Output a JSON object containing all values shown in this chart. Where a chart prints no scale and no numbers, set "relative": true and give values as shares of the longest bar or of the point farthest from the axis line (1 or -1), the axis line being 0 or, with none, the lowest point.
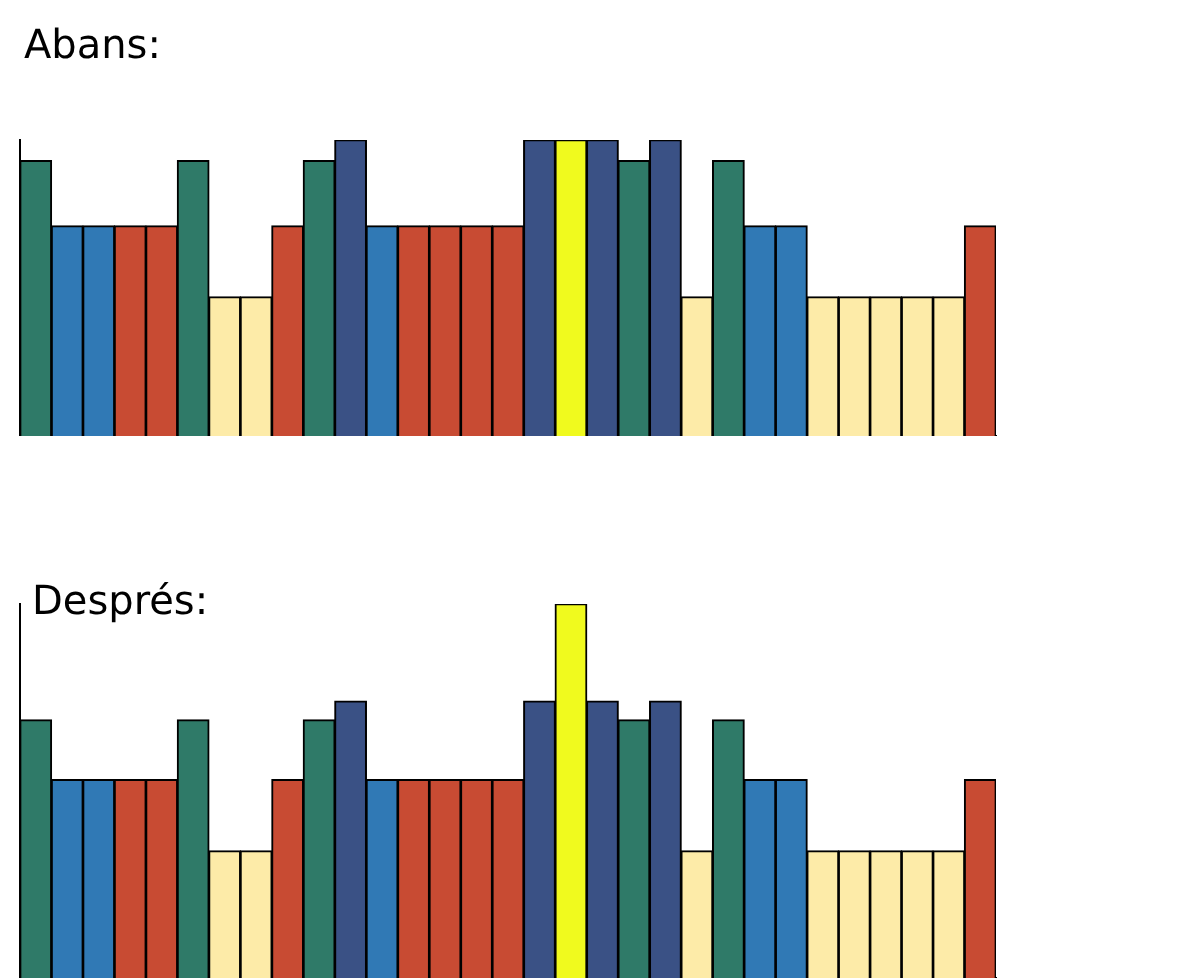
{
  "chart_data": [
    {
      "type": "bar",
      "title": "Abans:",
      "relative": true,
      "tick_labels": false,
      "grid": false,
      "legend": false,
      "categories": [
        null,
        null,
        null,
        null,
        null,
        null,
        null,
        null,
        null,
        null,
        null,
        null,
        null,
        null,
        null,
        null,
        null,
        null,
        null,
        null,
        null,
        null,
        null,
        null,
        null,
        null,
        null,
        null,
        null,
        null,
        null
      ],
      "values": [
        0.93,
        0.71,
        0.71,
        0.71,
        0.71,
        0.93,
        0.47,
        0.47,
        0.71,
        0.93,
        1,
        0.71,
        0.71,
        0.71,
        0.71,
        0.71,
        1,
        1,
        1,
        0.93,
        1,
        0.47,
        0.93,
        0.71,
        0.71,
        0.47,
        0.47,
        0.47,
        0.47,
        0.47,
        0.71
      ],
      "colors": [
        "#2f7a68",
        "#3079b5",
        "#3079b5",
        "#c84b33",
        "#c84b33",
        "#2f7a68",
        "#fdeba8",
        "#fdeba8",
        "#c84b33",
        "#2f7a68",
        "#3a5185",
        "#3079b5",
        "#c84b33",
        "#c84b33",
        "#c84b33",
        "#c84b33",
        "#3a5185",
        "#f0fa1e",
        "#3a5185",
        "#2f7a68",
        "#3a5185",
        "#fdeba8",
        "#2f7a68",
        "#3079b5",
        "#3079b5",
        "#fdeba8",
        "#fdeba8",
        "#fdeba8",
        "#fdeba8",
        "#fdeba8",
        "#c84b33"
      ]
    },
    {
      "type": "bar",
      "title": "Després:",
      "relative": true,
      "tick_labels": false,
      "grid": false,
      "legend": false,
      "categories": [
        null,
        null,
        null,
        null,
        null,
        null,
        null,
        null,
        null,
        null,
        null,
        null,
        null,
        null,
        null,
        null,
        null,
        null,
        null,
        null,
        null,
        null,
        null,
        null,
        null,
        null,
        null,
        null,
        null,
        null,
        null
      ],
      "values": [
        0.69,
        0.53,
        0.53,
        0.53,
        0.53,
        0.69,
        0.34,
        0.34,
        0.53,
        0.69,
        0.74,
        0.53,
        0.53,
        0.53,
        0.53,
        0.53,
        0.74,
        1,
        0.74,
        0.69,
        0.74,
        0.34,
        0.69,
        0.53,
        0.53,
        0.34,
        0.34,
        0.34,
        0.34,
        0.34,
        0.53
      ],
      "colors": [
        "#2f7a68",
        "#3079b5",
        "#3079b5",
        "#c84b33",
        "#c84b33",
        "#2f7a68",
        "#fdeba8",
        "#fdeba8",
        "#c84b33",
        "#2f7a68",
        "#3a5185",
        "#3079b5",
        "#c84b33",
        "#c84b33",
        "#c84b33",
        "#c84b33",
        "#3a5185",
        "#f0fa1e",
        "#3a5185",
        "#2f7a68",
        "#3a5185",
        "#fdeba8",
        "#2f7a68",
        "#3079b5",
        "#3079b5",
        "#fdeba8",
        "#fdeba8",
        "#fdeba8",
        "#fdeba8",
        "#fdeba8",
        "#c84b33"
      ]
    }
  ]
}
